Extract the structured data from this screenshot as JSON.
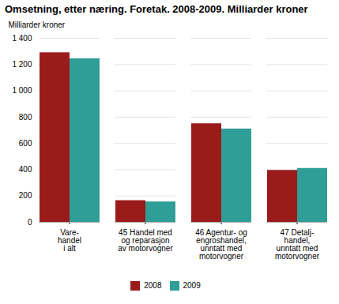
{
  "chart_data": {
    "type": "bar",
    "title": "Omsetning, etter næring. Foretak. 2008-2009. Milliarder kroner",
    "ylabel": "Milliarder kroner",
    "categories": [
      "Vare-\nhandel\ni alt",
      "45 Handel med\nog reparasjon\nav motorvogner",
      "46 Agentur- og\nengroshandel,\nunntatt med\nmotorvogner",
      "47 Detalj-\nhandel,\nunntatt med\nmotorvogner"
    ],
    "series": [
      {
        "name": "2008",
        "color": "#9b1b1b",
        "values": [
          1290,
          165,
          750,
          395
        ]
      },
      {
        "name": "2009",
        "color": "#2e9e96",
        "values": [
          1245,
          155,
          710,
          410
        ]
      }
    ],
    "ylim": [
      0,
      1400
    ],
    "yticks": [
      0,
      200,
      400,
      600,
      800,
      {
        "value": 1000,
        "label": "1 000"
      },
      {
        "value": 1200,
        "label": "1 200"
      },
      {
        "value": 1400,
        "label": "1 400"
      }
    ],
    "grid": true,
    "legend": "bottom"
  }
}
